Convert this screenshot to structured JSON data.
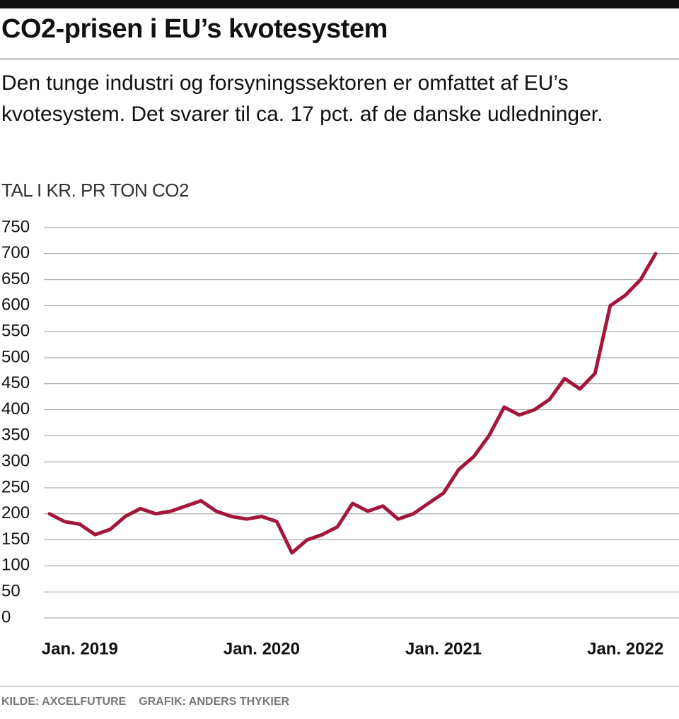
{
  "chart_data": {
    "type": "line",
    "title": "CO2-prisen i EU’s kvotesystem",
    "subtitle": "Den tunge industri og forsyningssektoren er omfattet af EU’s kvotesystem. Det svarer til ca. 17 pct. af de danske udledninger.",
    "y_label": "TAL I KR. PR TON CO2",
    "source": "KILDE: AXCELFUTURE",
    "credit": "GRAFIK: ANDERS THYKIER",
    "color": "#a3173a",
    "x": [
      "2018-11",
      "2018-12",
      "2019-01",
      "2019-02",
      "2019-03",
      "2019-04",
      "2019-05",
      "2019-06",
      "2019-07",
      "2019-08",
      "2019-09",
      "2019-10",
      "2019-11",
      "2019-12",
      "2020-01",
      "2020-02",
      "2020-03",
      "2020-04",
      "2020-05",
      "2020-06",
      "2020-07",
      "2020-08",
      "2020-09",
      "2020-10",
      "2020-11",
      "2020-12",
      "2021-01",
      "2021-02",
      "2021-03",
      "2021-04",
      "2021-05",
      "2021-06",
      "2021-07",
      "2021-08",
      "2021-09",
      "2021-10",
      "2021-11",
      "2021-12",
      "2022-01",
      "2022-02",
      "2022-03"
    ],
    "values": [
      200,
      185,
      180,
      160,
      170,
      195,
      210,
      200,
      205,
      215,
      225,
      205,
      195,
      190,
      195,
      185,
      125,
      150,
      160,
      175,
      220,
      205,
      215,
      190,
      200,
      220,
      240,
      285,
      310,
      350,
      405,
      390,
      400,
      420,
      460,
      440,
      470,
      600,
      620,
      650,
      700
    ],
    "xlim": [
      "2018-11",
      "2022-03"
    ],
    "xticks": [
      {
        "value": "2019-01",
        "label": "Jan. 2019"
      },
      {
        "value": "2020-01",
        "label": "Jan. 2020"
      },
      {
        "value": "2021-01",
        "label": "Jan. 2021"
      },
      {
        "value": "2022-01",
        "label": "Jan. 2022"
      }
    ],
    "ylim": [
      0,
      750
    ],
    "yticks": [
      0,
      50,
      100,
      150,
      200,
      250,
      300,
      350,
      400,
      450,
      500,
      550,
      600,
      650,
      700,
      750
    ],
    "grid": true
  }
}
